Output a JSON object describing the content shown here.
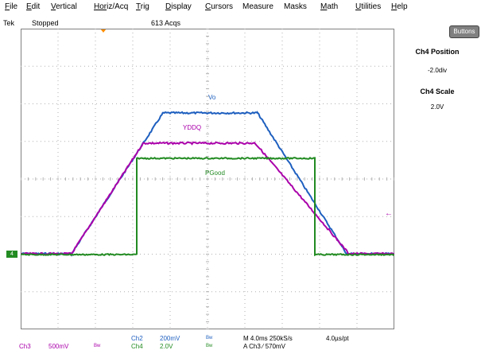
{
  "menu": [
    {
      "label": "File",
      "u": "F",
      "r": "ile"
    },
    {
      "label": "Edit",
      "u": "E",
      "r": "dit"
    },
    {
      "label": "Vertical",
      "u": "V",
      "r": "ertical"
    },
    {
      "label": "Horiz/Acq",
      "u": "Hor",
      "r": "iz/Acq"
    },
    {
      "label": "Trig",
      "u": "T",
      "r": "rig"
    },
    {
      "label": "Display",
      "u": "D",
      "r": "isplay"
    },
    {
      "label": "Cursors",
      "u": "C",
      "r": "ursors"
    },
    {
      "label": "Measure",
      "u": "",
      "r": "Measure"
    },
    {
      "label": "Masks",
      "u": "",
      "r": "Masks"
    },
    {
      "label": "Math",
      "u": "M",
      "r": "ath"
    },
    {
      "label": "Utilities",
      "u": "U",
      "r": "tilities"
    },
    {
      "label": "Help",
      "u": "H",
      "r": "elp"
    }
  ],
  "status": {
    "brand": "Tek",
    "state": "Stopped",
    "acqs": "613 Acqs"
  },
  "buttons_label": "Buttons",
  "side_panel": {
    "position_title": "Ch4 Position",
    "position_value": "-2.0div",
    "scale_title": "Ch4 Scale",
    "scale_value": "2.0V"
  },
  "gnd_label": "4",
  "trig_level_glyph": "←",
  "traces": [
    {
      "name": "Vo",
      "color": "#1e5fbf"
    },
    {
      "name": "YDDQ",
      "color": "#aa00aa"
    },
    {
      "name": "PGood",
      "color": "#228b22"
    }
  ],
  "bottom": {
    "ch2": "Ch2",
    "ch2_scale": "200mV",
    "ch2_bw": "Bw",
    "ch3": "Ch3",
    "ch3_scale": "500mV",
    "ch3_bw": "Bw",
    "ch4": "Ch4",
    "ch4_scale": "2.0V",
    "ch4_bw": "Bw",
    "horiz": "M 4.0ms 250kS/s",
    "res": "4.0µs/pt",
    "trigger": "A  Ch3  ⁄  570mV"
  },
  "colors": {
    "grid": "#b0b0b0",
    "frame": "#808080",
    "ch2": "#1e5fbf",
    "ch3": "#aa00aa",
    "ch4": "#228b22",
    "trigger": "#ff8c00"
  }
}
